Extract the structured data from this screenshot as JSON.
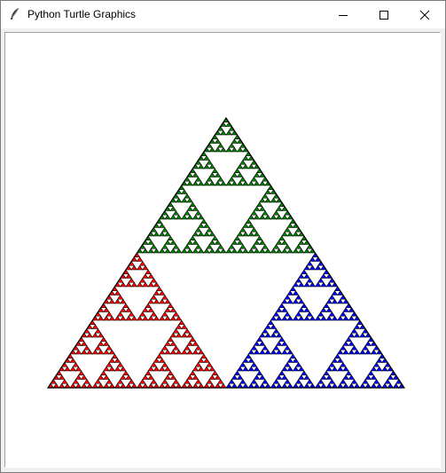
{
  "window": {
    "title": "Python Turtle Graphics",
    "icon": "feather-icon",
    "controls": {
      "minimize_icon": "minimize-icon",
      "maximize_icon": "maximize-icon",
      "close_icon": "close-icon"
    }
  },
  "canvas": {
    "background": "#ffffff",
    "drawing": "sierpinski-triangle",
    "recursion_depth": 6,
    "sub_triangles": [
      {
        "position": "top",
        "color": "#008000"
      },
      {
        "position": "bottom-left",
        "color": "#ff0000"
      },
      {
        "position": "bottom-right",
        "color": "#0000ff"
      }
    ],
    "outline_color": "#000000"
  }
}
